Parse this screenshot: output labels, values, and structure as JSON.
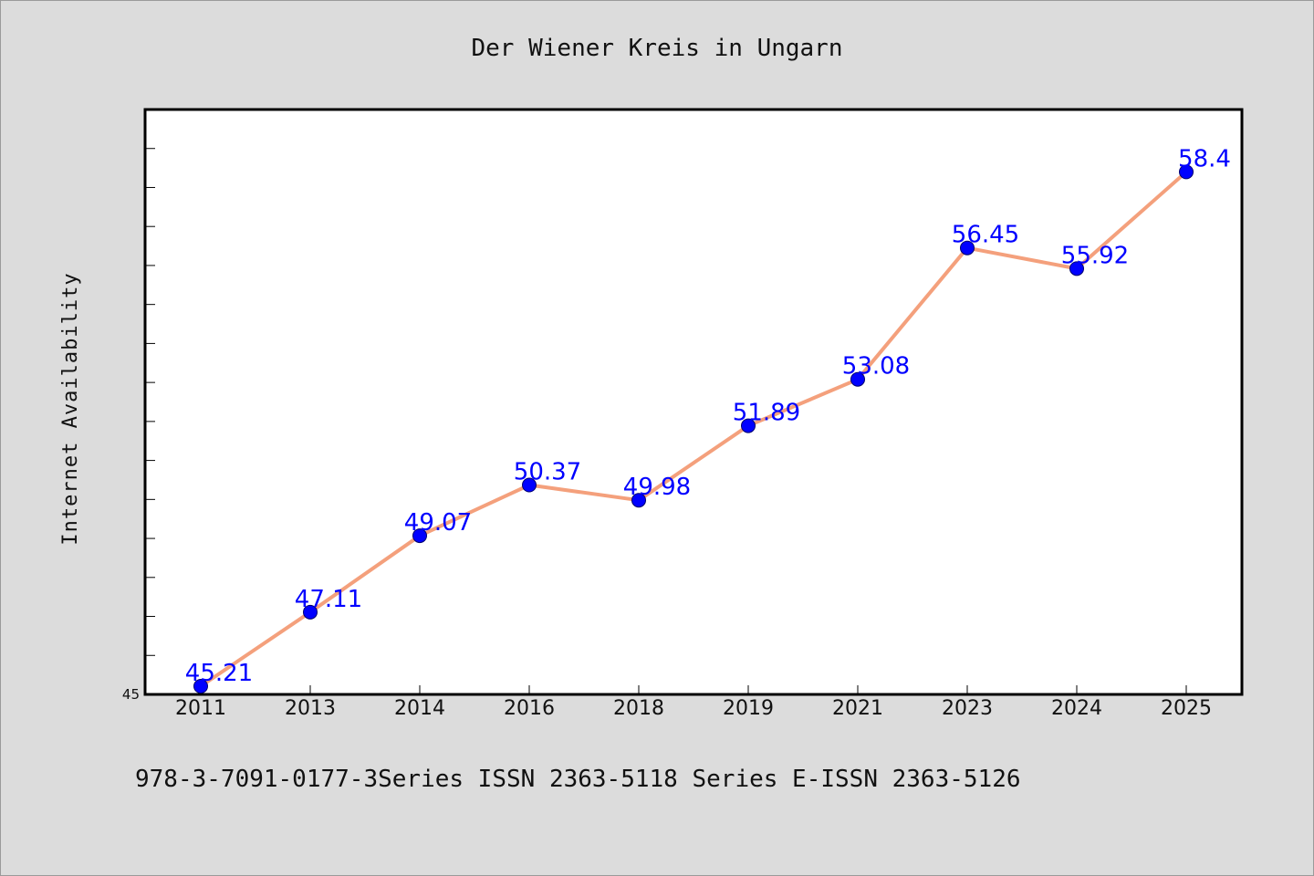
{
  "colors": {
    "background": "#dcdcdc",
    "plot_background": "#ffffff",
    "line": "#f4a07c",
    "marker": "#0000ff",
    "data_label": "#0000ff"
  },
  "footer": "978-3-7091-0177-3Series ISSN 2363-5118 Series E-ISSN 2363-5126",
  "chart_data": {
    "type": "line",
    "title": "Der Wiener Kreis in Ungarn",
    "xlabel": "",
    "ylabel": "Internet Availability",
    "categories": [
      "2011",
      "2013",
      "2014",
      "2016",
      "2018",
      "2019",
      "2021",
      "2023",
      "2024",
      "2025"
    ],
    "series": [
      {
        "values": [
          45.21,
          47.11,
          49.07,
          50.37,
          49.98,
          51.89,
          53.08,
          56.45,
          55.92,
          58.4
        ],
        "labels": [
          "45.21",
          "47.11",
          "49.07",
          "50.37",
          "49.98",
          "51.89",
          "53.08",
          "56.45",
          "55.92",
          "58.4"
        ]
      }
    ],
    "ylim": [
      45,
      60
    ],
    "ytick_labels": [
      "45"
    ],
    "grid": false,
    "legend": "none",
    "markers": true,
    "data_labels": true
  }
}
